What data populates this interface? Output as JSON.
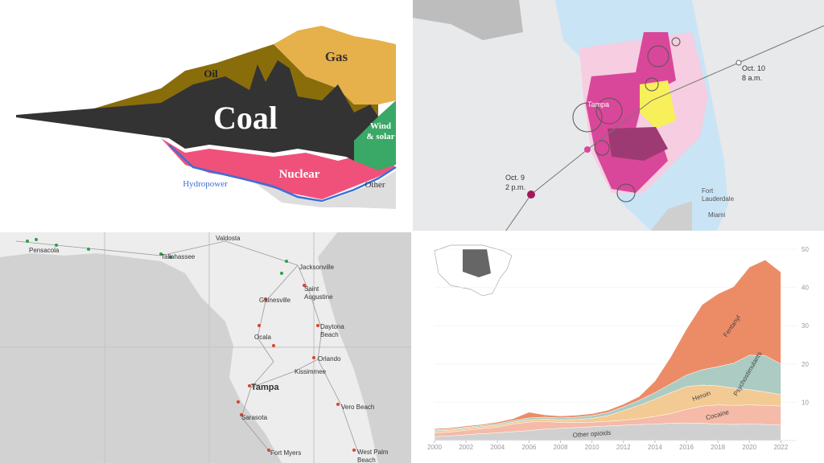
{
  "energy_chart": {
    "oil": "Oil",
    "gas": "Gas",
    "coal": "Coal",
    "wind_solar": [
      "Wind",
      "& solar"
    ],
    "nuclear": "Nuclear",
    "hydropower": "Hydropower",
    "other": "Other"
  },
  "hurricane_map": {
    "landfall": [
      "Oct. 10",
      "8 a.m."
    ],
    "start": [
      "Oct. 9",
      "2 p.m."
    ],
    "tampa": "Tampa",
    "fort_lauderdale": [
      "Fort",
      "Lauderdale"
    ],
    "miami": "Miami"
  },
  "rail_map": {
    "cities": {
      "pensacola": "Pensacola",
      "tallahassee": "Tallahassee",
      "valdosta": "Valdosta",
      "jacksonville": "Jacksonville",
      "saint_augustine": [
        "Saint",
        "Augustine"
      ],
      "gainesville": "Gainesville",
      "ocala": "Ocala",
      "daytona_beach": [
        "Daytona",
        "Beach"
      ],
      "orlando": "Orlando",
      "kissimmee": "Kissimmee",
      "tampa": "Tampa",
      "vero_beach": "Vero Beach",
      "sarasota": "Sarasota",
      "fort_myers": "Fort Myers",
      "west_palm_beach": [
        "West Palm",
        "Beach"
      ]
    }
  },
  "chart_data": {
    "type": "stacked_area",
    "x": [
      2000,
      2001,
      2002,
      2003,
      2004,
      2005,
      2006,
      2007,
      2008,
      2009,
      2010,
      2011,
      2012,
      2013,
      2014,
      2015,
      2016,
      2017,
      2018,
      2019,
      2020,
      2021,
      2022
    ],
    "xlim": [
      2000,
      2023
    ],
    "xticks": [
      2000,
      2002,
      2004,
      2006,
      2008,
      2010,
      2012,
      2014,
      2016,
      2018,
      2020,
      2022
    ],
    "ylim": [
      0,
      50
    ],
    "yticks": [
      10,
      20,
      30,
      40,
      50
    ],
    "series": [
      {
        "name": "Other opioids",
        "color": "#cbcbcb",
        "values": [
          1,
          1.2,
          1.5,
          1.8,
          2,
          2.3,
          2.6,
          3,
          3.2,
          3.4,
          3.6,
          3.8,
          4,
          4.2,
          4.3,
          4.5,
          4.6,
          4.5,
          4.3,
          4.2,
          4.3,
          4.2,
          4
        ]
      },
      {
        "name": "Cocaine",
        "color": "#f4b39e",
        "values": [
          1,
          1,
          1.2,
          1.3,
          1.5,
          2,
          2.2,
          2,
          1.5,
          1.3,
          1.2,
          1.2,
          1.3,
          1.5,
          2,
          2.5,
          3.5,
          4.5,
          5,
          5,
          5,
          5,
          5
        ]
      },
      {
        "name": "Heroin",
        "color": "#f2c488",
        "values": [
          0.5,
          0.5,
          0.5,
          0.5,
          0.5,
          0.5,
          0.6,
          0.6,
          0.7,
          0.8,
          1,
          1.5,
          2.5,
          3.5,
          4.5,
          5.5,
          6,
          5.5,
          5,
          4.5,
          4,
          3.5,
          3
        ]
      },
      {
        "name": "Psychostimulants",
        "color": "#a3c5bb",
        "values": [
          0.3,
          0.3,
          0.3,
          0.3,
          0.4,
          0.4,
          0.5,
          0.5,
          0.5,
          0.6,
          0.7,
          0.8,
          1,
          1.3,
          1.7,
          2.3,
          3,
          4,
          5,
          6.5,
          9,
          9.5,
          8
        ]
      },
      {
        "name": "Fentanyl",
        "color": "#ea7f55",
        "values": [
          0.3,
          0.3,
          0.3,
          0.3,
          0.4,
          0.5,
          1.5,
          0.6,
          0.5,
          0.5,
          0.5,
          0.6,
          0.7,
          1,
          3,
          7,
          12,
          17,
          19,
          20,
          23,
          25,
          24
        ]
      }
    ]
  }
}
